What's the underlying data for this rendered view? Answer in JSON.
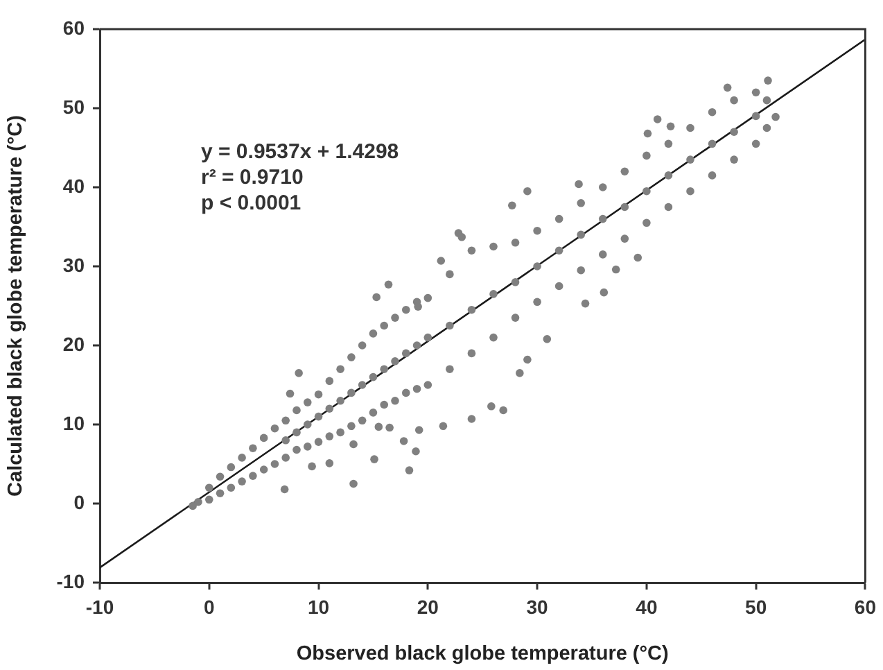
{
  "chart_data": {
    "type": "scatter",
    "xlabel": "Observed black globe temperature (°C)",
    "ylabel": "Calculated black globe temperature (°C)",
    "annotations": [
      "y = 0.9537x + 1.4298",
      "r² = 0.9710",
      "p < 0.0001"
    ],
    "xlim": [
      -10,
      60
    ],
    "ylim": [
      -10,
      60
    ],
    "xticks": [
      -10,
      0,
      10,
      20,
      30,
      40,
      50,
      60
    ],
    "yticks": [
      -10,
      0,
      10,
      20,
      30,
      40,
      50,
      60
    ],
    "grid": false,
    "legend": false,
    "marker": "circle",
    "series": [
      {
        "color": "#808080",
        "x": [
          -1.5,
          -1,
          0,
          0,
          1,
          1,
          2,
          2,
          3,
          3,
          4,
          4,
          5,
          5,
          6,
          6,
          7,
          7,
          7,
          8,
          8,
          8,
          9,
          9,
          9,
          10,
          10,
          10,
          11,
          11,
          11,
          12,
          12,
          12,
          13,
          13,
          13,
          14,
          14,
          14,
          15,
          15,
          15,
          16,
          16,
          16,
          17,
          17,
          17,
          18,
          18,
          18,
          19,
          19,
          19,
          20,
          20,
          20,
          22,
          22,
          22,
          24,
          24,
          24,
          26,
          26,
          26,
          28,
          28,
          28,
          30,
          30,
          30,
          32,
          32,
          32,
          34,
          34,
          34,
          36,
          36,
          36,
          38,
          38,
          38,
          40,
          40,
          40,
          42,
          42,
          42,
          44,
          44,
          44,
          46,
          46,
          46,
          48,
          48,
          48,
          50,
          50,
          50,
          51,
          51,
          6.9,
          13.2,
          8.2,
          7.4,
          9.4,
          11,
          15.1,
          18.3,
          18.9,
          17.8,
          19.2,
          16.5,
          13.2,
          15.5,
          26.9,
          24,
          25.8,
          21.4,
          28.4,
          29.1,
          30.9,
          29.1,
          27.7,
          23.1,
          33.8,
          40.1,
          41,
          42.2,
          47.4,
          51.1,
          51.8,
          39.2,
          37.2,
          34.4,
          36.1,
          22.8,
          21.2,
          19.1,
          16.4,
          15.3
        ],
        "values": [
          -0.3,
          0.2,
          0.5,
          2,
          1.3,
          3.4,
          2,
          4.6,
          2.8,
          5.8,
          3.5,
          7,
          4.3,
          8.3,
          5,
          9.5,
          5.8,
          10.5,
          8,
          6.8,
          11.8,
          9,
          7.2,
          12.8,
          10,
          7.8,
          13.8,
          11,
          8.5,
          15.5,
          12,
          9,
          17,
          13,
          9.8,
          18.5,
          14,
          10.5,
          20,
          15,
          11.5,
          21.5,
          16,
          12.5,
          22.5,
          17,
          13,
          23.5,
          18,
          14,
          24.5,
          19,
          14.5,
          25.5,
          20,
          15,
          26,
          21,
          17,
          29,
          22.5,
          19,
          32,
          24.5,
          21,
          32.5,
          26.5,
          23.5,
          33,
          28,
          25.5,
          34.5,
          30,
          27.5,
          36,
          32,
          29.5,
          38,
          34,
          31.5,
          40,
          36,
          33.5,
          42,
          37.5,
          35.5,
          44,
          39.5,
          37.5,
          45.5,
          41.5,
          39.5,
          47.5,
          43.5,
          41.5,
          49.5,
          45.5,
          43.5,
          51,
          47,
          45.5,
          52,
          49,
          47.5,
          51,
          1.8,
          2.5,
          16.5,
          13.9,
          4.7,
          5.1,
          5.6,
          4.2,
          6.6,
          7.9,
          9.3,
          9.6,
          7.5,
          9.7,
          11.8,
          10.7,
          12.3,
          9.8,
          16.5,
          18.2,
          20.8,
          39.5,
          37.7,
          33.7,
          40.4,
          46.8,
          48.6,
          47.7,
          52.6,
          53.5,
          48.9,
          31.1,
          29.6,
          25.3,
          26.7,
          34.2,
          30.7,
          24.9,
          27.7,
          26.1
        ]
      },
      {
        "type": "line",
        "color": "#1a1a1a",
        "marker": "none",
        "line_style": "solid",
        "x": [
          -10,
          60
        ],
        "values": [
          -8.1,
          58.7
        ]
      }
    ]
  }
}
